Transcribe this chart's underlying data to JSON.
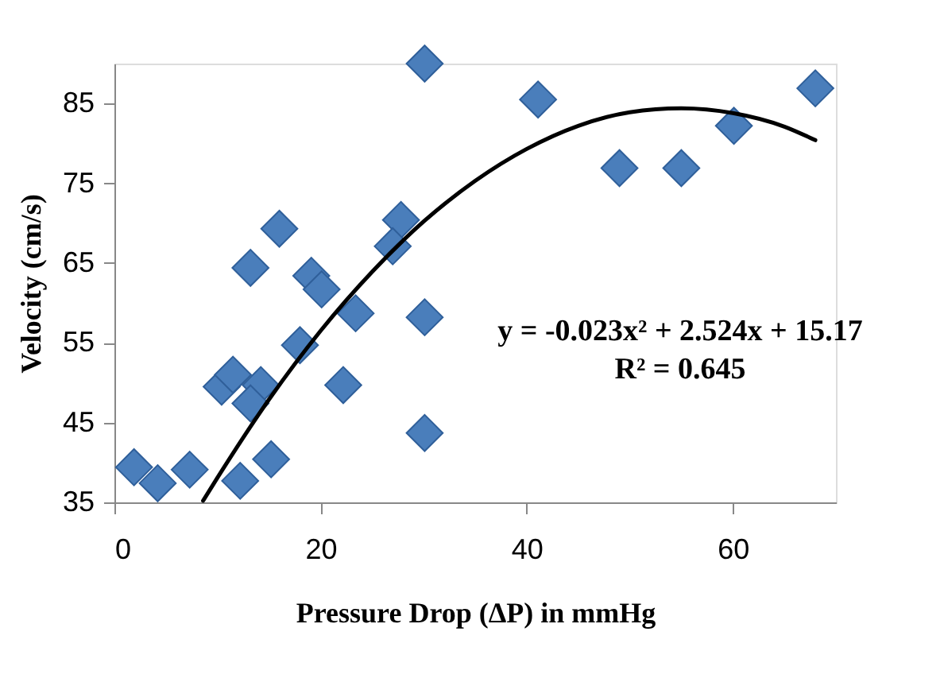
{
  "chart_data": {
    "type": "scatter",
    "xlabel": "Pressure Drop (ΔP) in mmHg",
    "ylabel": "Velocity  (cm/s)",
    "xlim": [
      0,
      70
    ],
    "xticks": [
      0,
      20,
      40,
      60
    ],
    "ylim": [
      35,
      90
    ],
    "yticks": [
      35,
      45,
      55,
      65,
      75,
      85
    ],
    "grid": false,
    "series": [
      {
        "marker": "diamond",
        "color": "#4a7ebb",
        "x": [
          30.1,
          16,
          13.2,
          27.8,
          27,
          19.1,
          20.1,
          23.4,
          30.1,
          18,
          10.4,
          11.5,
          14.2,
          13.2,
          22.2,
          30.1,
          15.2,
          1.9,
          4.2,
          7.3,
          12.2,
          41.1,
          49,
          55,
          60.1,
          68
        ],
        "values": [
          90,
          69.3,
          64.4,
          70.4,
          67.1,
          63.4,
          61.7,
          58.7,
          58.2,
          54.7,
          49.5,
          51,
          49.7,
          47.4,
          49.7,
          43.7,
          40.4,
          39.4,
          37.4,
          39.1,
          37.7,
          85.5,
          76.9,
          76.9,
          82.2,
          86.9
        ]
      },
      {
        "type": "line",
        "marker": "none",
        "line_style": "solid",
        "color": "#000000",
        "x": [
          8.6,
          10,
          15,
          20,
          25,
          30,
          35,
          40,
          45,
          50,
          55,
          60,
          65,
          68
        ],
        "values": [
          35.2,
          38.1,
          47.9,
          56.5,
          63.9,
          70.2,
          75.3,
          79.3,
          82.2,
          83.9,
          84.4,
          83.8,
          82.1,
          80.4
        ]
      }
    ],
    "annotations": [
      "y = -0.023x² + 2.524x + 15.17",
      "R² = 0.645"
    ]
  }
}
